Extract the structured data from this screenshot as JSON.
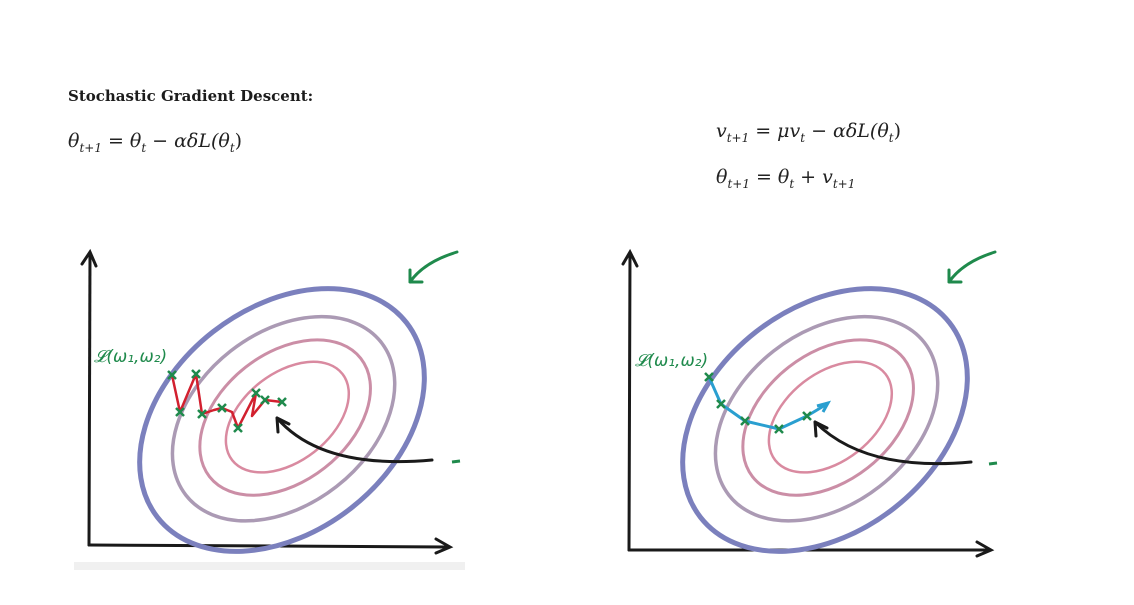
{
  "heading": "Stochastic Gradient Descent:",
  "equations": {
    "sgd": {
      "lhs": "θ",
      "lhs_sub": "t+1",
      "t1": "θ",
      "t1_sub": "t",
      "rest": "αδL(θ",
      "rest_sub": "t",
      "close": ")"
    },
    "momentum_v": {
      "lhs": "v",
      "lhs_sub": "t+1",
      "mu": "μv",
      "mu_sub": "t",
      "rest": "αδL(θ",
      "rest_sub": "t",
      "close": ")"
    },
    "momentum_theta": {
      "lhs": "θ",
      "lhs_sub": "t+1",
      "t1": "θ",
      "t1_sub": "t",
      "t2": "v",
      "t2_sub": "t+1"
    }
  },
  "diagrams": {
    "function_label": "𝓛(ω₁,ω₂)",
    "colors": {
      "outer_contour": "#7b80bd",
      "mid_contour": "#ab9ab4",
      "inner_contour_1": "#cb8ea6",
      "inner_contour_2": "#d98aa0",
      "center_contour": "#e47780",
      "sgd_path": "#d2202f",
      "momentum_path": "#2a9fd0",
      "markers": "#1f8a4c",
      "axes": "#1a1a1a"
    }
  }
}
